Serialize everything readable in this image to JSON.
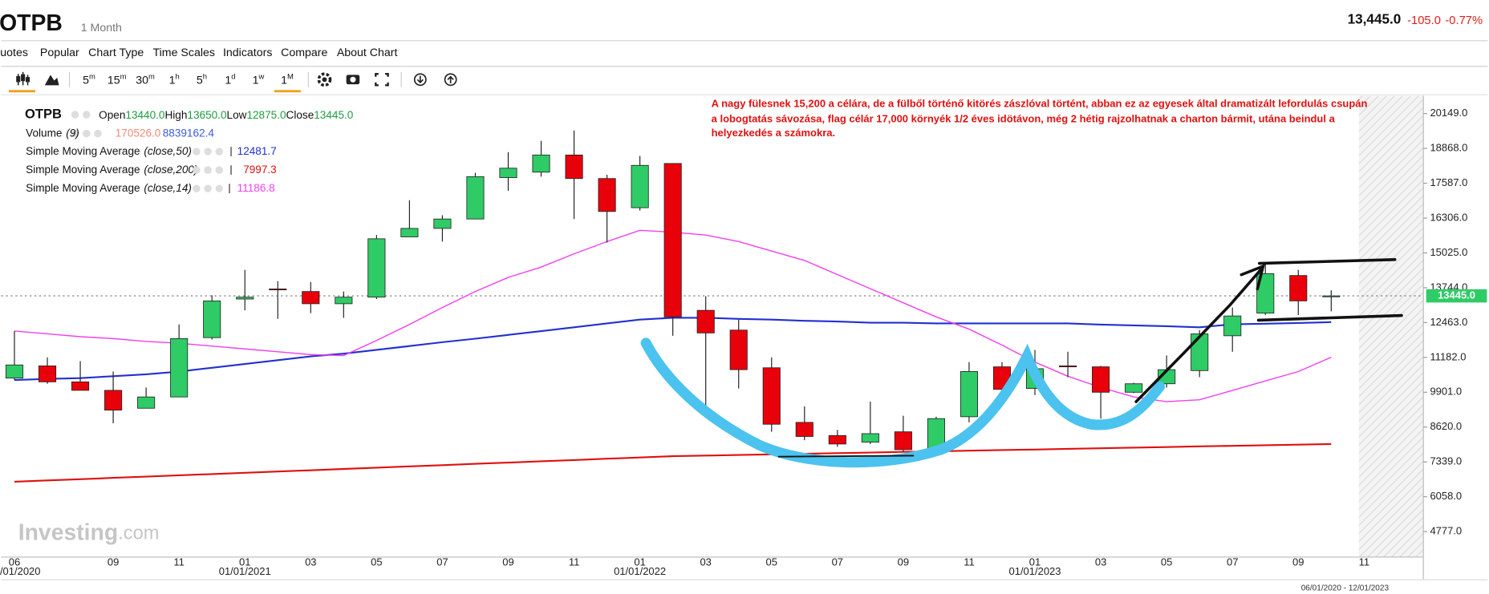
{
  "header": {
    "symbol": "OTPB",
    "period": "1 Month",
    "price": "13,445.0",
    "change": "-105.0",
    "change_pct": "-0.77%"
  },
  "menu": [
    "uotes",
    "Popular",
    "Chart Type",
    "Time Scales",
    "Indicators",
    "Compare",
    "About Chart"
  ],
  "toolbar": {
    "intervals": [
      {
        "base": "5",
        "unit": "m"
      },
      {
        "base": "15",
        "unit": "m"
      },
      {
        "base": "30",
        "unit": "m"
      },
      {
        "base": "1",
        "unit": "h"
      },
      {
        "base": "5",
        "unit": "h"
      },
      {
        "base": "1",
        "unit": "d"
      },
      {
        "base": "1",
        "unit": "w"
      },
      {
        "base": "1",
        "unit": "M"
      }
    ]
  },
  "chart_data": {
    "type": "candlestick",
    "symbol": "OTPB",
    "categories": [
      "06",
      null,
      null,
      "09",
      null,
      "11",
      null,
      "01",
      null,
      "03",
      null,
      "05",
      null,
      "07",
      null,
      "09",
      null,
      "11",
      null,
      "01",
      null,
      "03",
      null,
      "05",
      null,
      "07",
      null,
      "09",
      null,
      "11",
      null,
      "01",
      null,
      "03",
      null,
      "05",
      null,
      "07",
      null,
      "09",
      null,
      "11"
    ],
    "category_dates": [
      "06/01/2020",
      null,
      null,
      null,
      null,
      null,
      null,
      "01/01/2021",
      null,
      null,
      null,
      null,
      null,
      null,
      null,
      null,
      null,
      null,
      null,
      "01/01/2022",
      null,
      null,
      null,
      null,
      null,
      null,
      null,
      null,
      null,
      null,
      null,
      "01/01/2023",
      null,
      null,
      null,
      null,
      null,
      null,
      null,
      null,
      null,
      null
    ],
    "open": [
      10421,
      10870,
      10283,
      9971,
      9313,
      9728,
      11909,
      13329,
      13700,
      13606,
      13156,
      13398,
      15614,
      15926,
      16272,
      17795,
      17995,
      18626,
      17760,
      16687,
      18314,
      12913,
      12186,
      10801,
      8793,
      8309,
      8066,
      8447,
      7824,
      9001,
      10836,
      10040,
      10870,
      10836,
      9901,
      10213,
      10697,
      11978,
      12810,
      14194,
      13440,
      null
    ],
    "high": [
      12152,
      11182,
      11044,
      10663,
      10075,
      12394,
      13467,
      14402,
      13987,
      13952,
      13606,
      15683,
      16964,
      16410,
      17968,
      18730,
      19145,
      19526,
      17899,
      18591,
      18314,
      13433,
      12567,
      11182,
      9382,
      8517,
      9555,
      9036,
      9001,
      11009,
      11009,
      11459,
      11390,
      10870,
      10248,
      11252,
      12186,
      13017,
      14610,
      14402,
      13650,
      null
    ],
    "low": [
      10352,
      10213,
      9971,
      8759,
      9313,
      9728,
      11840,
      12913,
      12602,
      12810,
      12636,
      13329,
      15614,
      15441,
      16272,
      17310,
      17830,
      16272,
      15406,
      16583,
      11978,
      9313,
      10040,
      8447,
      8136,
      7893,
      7997,
      7720,
      7720,
      8793,
      9728,
      9797,
      10456,
      8932,
      9867,
      10075,
      10456,
      11390,
      12740,
      12740,
      12875,
      null
    ],
    "close": [
      10905,
      10283,
      9971,
      9243,
      9728,
      11874,
      13259,
      13398,
      13680,
      13156,
      13398,
      15545,
      15926,
      16272,
      17830,
      18141,
      18626,
      17760,
      16549,
      18245,
      12671,
      12082,
      10732,
      8724,
      8274,
      7997,
      8378,
      7789,
      8932,
      10663,
      10005,
      10767,
      10836,
      9901,
      10213,
      10732,
      12048,
      12706,
      14264,
      13260,
      13445,
      null
    ],
    "up_color": "#2fcb66",
    "down_color": "#e8000b",
    "ohlc_labels": [
      {
        "name": "Open",
        "value": "13440.0"
      },
      {
        "name": "High",
        "value": "13650.0"
      },
      {
        "name": "Low",
        "value": "12875.0"
      },
      {
        "name": "Close",
        "value": "13445.0"
      }
    ],
    "volume_legend": {
      "name": "Volume",
      "params": "(9)",
      "values": [
        "170526.0",
        "8839162.4"
      ],
      "colors": [
        "#f08a7a",
        "#3b5bd6"
      ]
    },
    "overlays": [
      {
        "name": "Simple Moving Average",
        "params": "(close,50)",
        "color": "#2230d0",
        "value_label": "12481.7",
        "values": [
          10350,
          10390,
          10420,
          10490,
          10560,
          10660,
          10800,
          10940,
          11080,
          11220,
          11320,
          11460,
          11600,
          11740,
          11870,
          12010,
          12150,
          12290,
          12430,
          12570,
          12640,
          12640,
          12600,
          12570,
          12530,
          12500,
          12460,
          12460,
          12430,
          12430,
          12430,
          12430,
          12430,
          12390,
          12360,
          12330,
          12290,
          12400,
          12420,
          12450,
          12481.7,
          null
        ]
      },
      {
        "name": "Simple Moving Average",
        "params": "(close,200)",
        "color": "#e01010",
        "value_label": "7997.3",
        "values": [
          6610,
          6657,
          6704,
          6751,
          6798,
          6845,
          6892,
          6939,
          6986,
          7033,
          7080,
          7127,
          7174,
          7221,
          7268,
          7315,
          7362,
          7409,
          7456,
          7503,
          7550,
          7572,
          7595,
          7617,
          7639,
          7662,
          7684,
          7706,
          7729,
          7751,
          7774,
          7796,
          7818,
          7841,
          7863,
          7885,
          7908,
          7930,
          7952,
          7975,
          7997.3,
          null
        ]
      },
      {
        "name": "Simple Moving Average",
        "params": "(close,14)",
        "color": "#f040f0",
        "value_label": "11186.8",
        "values": [
          12152,
          12048,
          11944,
          11874,
          11771,
          11702,
          11598,
          11494,
          11390,
          11286,
          11252,
          11805,
          12394,
          13017,
          13606,
          14125,
          14506,
          14991,
          15441,
          15856,
          15787,
          15683,
          15441,
          15095,
          14748,
          14229,
          13710,
          13190,
          12671,
          12221,
          11632,
          11009,
          10490,
          10075,
          9728,
          9555,
          9624,
          9970,
          10317,
          10663,
          11186.8,
          null
        ]
      }
    ],
    "ylim": [
      3840,
      20807
    ],
    "yticks": [
      {
        "value": 20149,
        "label": "20149.0"
      },
      {
        "value": 18868,
        "label": "18868.0"
      },
      {
        "value": 17587,
        "label": "17587.0"
      },
      {
        "value": 16306,
        "label": "16306.0"
      },
      {
        "value": 15025,
        "label": "15025.0"
      },
      {
        "value": 13744,
        "label": "13744.0"
      },
      {
        "value": 12463,
        "label": "12463.0"
      },
      {
        "value": 11182,
        "label": "11182.0"
      },
      {
        "value": 9901,
        "label": "9901.0"
      },
      {
        "value": 8620,
        "label": "8620.0"
      },
      {
        "value": 7339,
        "label": "7339.0"
      },
      {
        "value": 6058,
        "label": "6058.0"
      },
      {
        "value": 4777,
        "label": "4777.0"
      }
    ],
    "grid": false,
    "last_price": {
      "value": 13445,
      "label": "13445.0",
      "color": "#2fcb66"
    },
    "annotation": [
      "A nagy fülesnek 15,200 a célára, de a fülből történő kitörés zászlóval történt, abban ez az egyesek által dramatizált lefordulás csupán",
      "a lobogtatás sávozása, flag célár 17,000 környék 1/2 éves idötávon, még 2 hétig rajzolhatnak a charton bármit, utána beindul a",
      "helyezkedés a számokra."
    ],
    "watermark": [
      "Investing",
      ".com"
    ],
    "date_range": "06/01/2020 - 12/01/2023"
  }
}
